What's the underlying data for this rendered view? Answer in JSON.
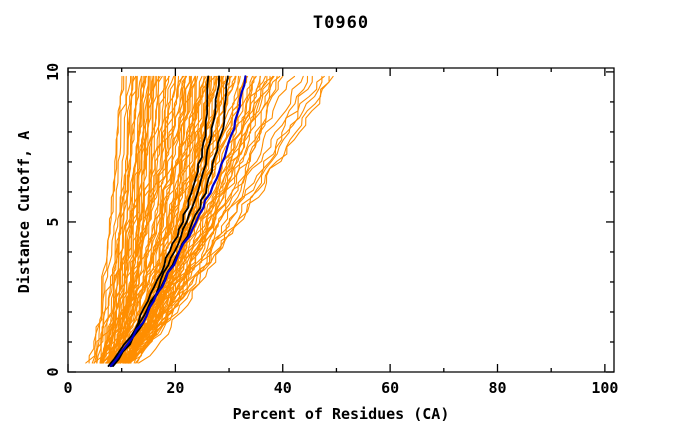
{
  "chart_data": {
    "type": "line",
    "title": "T0960",
    "xlabel": "Percent of Residues (CA)",
    "ylabel": "Distance Cutoff, A",
    "grid": false,
    "legend": "none",
    "x_axis": {
      "range": [
        0,
        101.7
      ],
      "major_ticks": [
        0,
        20,
        40,
        60,
        80,
        100
      ],
      "minor_ticks": [
        10,
        30,
        50,
        70,
        90
      ],
      "tick_labels": [
        "0",
        "20",
        "40",
        "60",
        "80",
        "100"
      ]
    },
    "y_axis": {
      "range": [
        0,
        10.13
      ],
      "major_ticks": [
        0,
        5,
        10
      ],
      "minor_ticks": [
        1,
        2,
        3,
        4,
        6,
        7,
        8,
        9
      ],
      "tick_labels": [
        "0",
        "5",
        "10"
      ]
    },
    "colors": {
      "orange_models": "#ff8e00",
      "black_models": "#000000",
      "blue_model": "#0000cd",
      "axis": "#000000",
      "background": "#ffffff"
    },
    "curve_y_grid": [
      0.2,
      0.5,
      1,
      1.5,
      2,
      2.5,
      3,
      3.5,
      4,
      4.5,
      5,
      5.5,
      6,
      6.5,
      7,
      7.5,
      8,
      8.5,
      9,
      9.5,
      9.85
    ],
    "series": [
      {
        "name": "black-model-1",
        "color_role": "black_models",
        "x_percent": [
          7.8,
          9.0,
          11.0,
          12.6,
          14.0,
          15.3,
          16.5,
          17.7,
          18.9,
          20.1,
          21.2,
          22.2,
          23.1,
          23.9,
          24.6,
          25.1,
          25.5,
          25.7,
          25.9,
          26.0,
          26.0
        ]
      },
      {
        "name": "black-model-2",
        "color_role": "black_models",
        "x_percent": [
          8.0,
          9.3,
          11.4,
          13.0,
          14.5,
          15.9,
          17.2,
          18.5,
          19.8,
          21.0,
          22.2,
          23.2,
          24.1,
          24.9,
          25.6,
          26.2,
          26.7,
          27.1,
          27.5,
          27.9,
          28.0
        ]
      },
      {
        "name": "black-model-3",
        "color_role": "black_models",
        "x_percent": [
          8.3,
          9.7,
          11.8,
          13.5,
          15.0,
          16.4,
          17.8,
          19.2,
          20.6,
          22.0,
          23.3,
          24.5,
          25.6,
          26.5,
          27.3,
          28.0,
          28.6,
          29.0,
          29.3,
          29.5,
          29.6
        ]
      },
      {
        "name": "blue-model",
        "color_role": "blue_model",
        "x_percent": [
          8.1,
          9.5,
          11.6,
          13.3,
          14.8,
          16.3,
          17.8,
          19.3,
          20.8,
          22.3,
          23.8,
          25.2,
          26.5,
          27.7,
          28.8,
          29.8,
          30.7,
          31.5,
          32.1,
          32.6,
          32.8
        ]
      }
    ],
    "orange_ensemble": {
      "count": 110,
      "y_span": [
        0.3,
        9.85
      ],
      "description": "each curve: [x_percent_at_bottom, x_percent_at_top, shape_exponent]",
      "curves": [
        [
          3.2,
          9.5,
          0.55
        ],
        [
          3.4,
          10,
          0.6
        ],
        [
          3.6,
          10.5,
          0.6
        ],
        [
          4.0,
          11,
          0.55
        ],
        [
          4.4,
          12,
          0.6
        ],
        [
          4.8,
          11.5,
          0.5
        ],
        [
          5.2,
          13,
          0.65
        ],
        [
          5.6,
          12.5,
          0.55
        ],
        [
          6.0,
          13.5,
          0.6
        ],
        [
          6.4,
          14,
          0.5
        ],
        [
          6.8,
          14.5,
          0.6
        ],
        [
          7.2,
          15,
          0.55
        ],
        [
          7.6,
          15.5,
          0.6
        ],
        [
          8.0,
          16,
          0.5
        ],
        [
          4.2,
          13,
          0.7
        ],
        [
          4.6,
          14,
          0.6
        ],
        [
          5.0,
          14.5,
          0.55
        ],
        [
          5.4,
          15,
          0.6
        ],
        [
          5.8,
          15.5,
          0.65
        ],
        [
          6.2,
          16,
          0.55
        ],
        [
          6.6,
          16.5,
          0.6
        ],
        [
          7.0,
          17,
          0.5
        ],
        [
          3.8,
          12,
          0.6
        ],
        [
          4.3,
          12.5,
          0.55
        ],
        [
          4.9,
          13.8,
          0.6
        ],
        [
          5.5,
          14.2,
          0.65
        ],
        [
          6.1,
          15.2,
          0.55
        ],
        [
          6.7,
          16.2,
          0.6
        ],
        [
          7.3,
          16.8,
          0.55
        ],
        [
          7.9,
          17.5,
          0.6
        ],
        [
          4.0,
          18,
          0.6
        ],
        [
          4.5,
          19,
          0.55
        ],
        [
          5.0,
          20,
          0.6
        ],
        [
          5.5,
          21,
          0.65
        ],
        [
          6.0,
          22,
          0.55
        ],
        [
          6.5,
          23,
          0.6
        ],
        [
          7.0,
          24,
          0.5
        ],
        [
          7.5,
          25,
          0.6
        ],
        [
          8.0,
          26,
          0.55
        ],
        [
          8.5,
          27,
          0.6
        ],
        [
          9.0,
          28,
          0.65
        ],
        [
          9.5,
          29,
          0.55
        ],
        [
          4.2,
          20,
          0.6
        ],
        [
          4.8,
          21.5,
          0.55
        ],
        [
          5.4,
          22.5,
          0.6
        ],
        [
          6.0,
          23.5,
          0.65
        ],
        [
          6.6,
          24.5,
          0.55
        ],
        [
          7.2,
          25.5,
          0.6
        ],
        [
          7.8,
          26.5,
          0.5
        ],
        [
          8.4,
          27.5,
          0.6
        ],
        [
          9.0,
          28.5,
          0.55
        ],
        [
          4.4,
          18.5,
          0.6
        ],
        [
          5.0,
          19.5,
          0.65
        ],
        [
          5.6,
          20.5,
          0.55
        ],
        [
          6.2,
          21.5,
          0.6
        ],
        [
          6.8,
          22.8,
          0.5
        ],
        [
          7.4,
          23.8,
          0.6
        ],
        [
          8.0,
          24.8,
          0.55
        ],
        [
          8.6,
          25.8,
          0.6
        ],
        [
          9.2,
          26.8,
          0.65
        ],
        [
          4.6,
          19.2,
          0.55
        ],
        [
          5.2,
          20.8,
          0.6
        ],
        [
          5.8,
          21.8,
          0.5
        ],
        [
          6.4,
          22.4,
          0.6
        ],
        [
          7.0,
          23.2,
          0.55
        ],
        [
          7.6,
          24.4,
          0.6
        ],
        [
          8.2,
          25.4,
          0.65
        ],
        [
          8.8,
          26.4,
          0.55
        ],
        [
          9.4,
          27.6,
          0.6
        ],
        [
          5.1,
          28,
          0.7
        ],
        [
          5.7,
          29,
          0.6
        ],
        [
          6.3,
          29.5,
          0.65
        ],
        [
          6.9,
          30,
          0.6
        ],
        [
          7.5,
          28.5,
          0.55
        ],
        [
          8.1,
          29.2,
          0.6
        ],
        [
          8.7,
          30,
          0.65
        ],
        [
          9.3,
          29.8,
          0.6
        ],
        [
          5.9,
          27.2,
          0.55
        ],
        [
          5.0,
          31,
          0.7
        ],
        [
          5.6,
          32,
          0.65
        ],
        [
          6.2,
          33,
          0.6
        ],
        [
          6.8,
          34,
          0.7
        ],
        [
          7.4,
          35,
          0.65
        ],
        [
          8.0,
          36,
          0.6
        ],
        [
          8.6,
          37,
          0.7
        ],
        [
          9.2,
          38,
          0.65
        ],
        [
          9.8,
          39,
          0.6
        ],
        [
          6.0,
          31.5,
          0.7
        ],
        [
          6.6,
          32.5,
          0.65
        ],
        [
          7.2,
          33.5,
          0.75
        ],
        [
          7.8,
          34.5,
          0.65
        ],
        [
          8.4,
          35.5,
          0.7
        ],
        [
          9.0,
          36.5,
          0.65
        ],
        [
          9.6,
          37.5,
          0.7
        ],
        [
          6.4,
          38.5,
          0.75
        ],
        [
          7.0,
          39.5,
          0.7
        ],
        [
          7.6,
          40,
          0.65
        ],
        [
          8.2,
          31,
          0.6
        ],
        [
          8.8,
          33,
          0.7
        ],
        [
          9.4,
          35,
          0.65
        ],
        [
          5.4,
          36.5,
          0.75
        ],
        [
          5.8,
          38,
          0.7
        ],
        [
          6.5,
          42,
          0.8
        ],
        [
          7.5,
          44,
          0.85
        ],
        [
          8.5,
          46,
          0.8
        ],
        [
          9.5,
          48,
          0.85
        ],
        [
          10,
          50,
          0.9
        ],
        [
          7.0,
          45,
          0.8
        ],
        [
          8.0,
          47.5,
          0.85
        ],
        [
          9.0,
          49,
          0.8
        ]
      ]
    }
  }
}
